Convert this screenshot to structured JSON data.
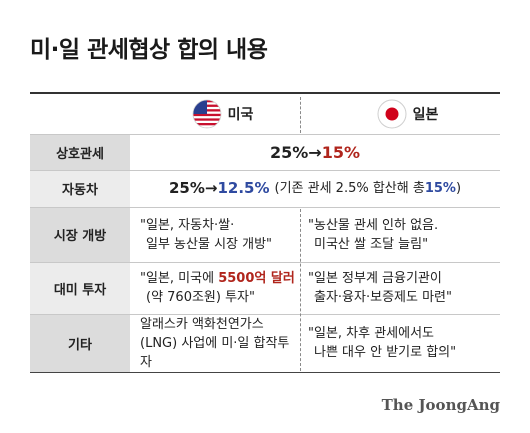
{
  "title": "미·일 관세협상 합의 내용",
  "header": {
    "us": "미국",
    "jp": "일본"
  },
  "rows": [
    {
      "label": "상호관세",
      "before": "25%",
      "arrow": "→",
      "after": "15%"
    },
    {
      "label": "자동차",
      "before": "25%",
      "arrow": "→",
      "after": "12.5%",
      "note_pre": "(기존 관세 2.5% 합산해 총 ",
      "note_total": "15%",
      "note_post": ")"
    },
    {
      "label": "시장 개방",
      "us_line1": "\"일본, 자동차·쌀·",
      "us_line2": "일부 농산물 시장 개방\"",
      "jp_line1": "\"농산물 관세 인하 없음.",
      "jp_line2": "미국산 쌀 조달 늘림\""
    },
    {
      "label": "대미 투자",
      "us_pre": "\"일본, 미국에 ",
      "us_amount": "5500억 달러",
      "us_line2": "(약 760조원) 투자\"",
      "jp_line1": "\"일본 정부계 금융기관이",
      "jp_line2": "출자·융자·보증제도 마련\""
    },
    {
      "label": "기타",
      "us_line1": "알래스카 액화천연가스",
      "us_line2": "(LNG) 사업에 미·일 합작투자",
      "jp_line1": "\"일본, 차후 관세에서도",
      "jp_line2": "나쁜 대우 안 받기로 합의\""
    }
  ],
  "credit": "The JoongAng",
  "colors": {
    "red": "#b0251c",
    "blue": "#2f4aa0"
  }
}
